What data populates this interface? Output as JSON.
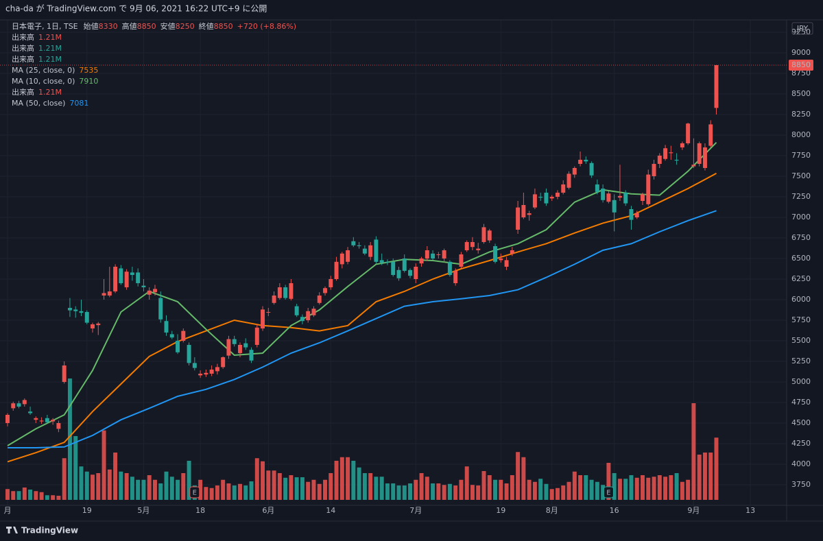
{
  "chart_data": {
    "type": "candlestick",
    "header": "cha-da が TradingView.com で 9月 06, 2021 16:22 UTC+9 に公開",
    "symbol": "日本電子, 1日, TSE",
    "ohlc_labels": [
      "始値",
      "高値",
      "安値",
      "終値"
    ],
    "change": "+720 (+8.86%)",
    "currency": "JPY",
    "earnings_marker": "E",
    "footer": "TradingView",
    "up_color": "#ef5350",
    "down_color": "#26a69a",
    "ylim": [
      3500,
      9400
    ],
    "yticks": [
      3750,
      4000,
      4250,
      4500,
      4750,
      5000,
      5250,
      5500,
      5750,
      6000,
      6250,
      6500,
      6750,
      7000,
      7250,
      7500,
      7750,
      8000,
      8250,
      8500,
      8750,
      9000,
      9250
    ],
    "xlim": [
      -1.33,
      137.4
    ],
    "xticks": [
      {
        "value": 0,
        "label": "月"
      },
      {
        "value": 14,
        "label": "19"
      },
      {
        "value": 24,
        "label": "5月"
      },
      {
        "value": 34,
        "label": "18"
      },
      {
        "value": 46,
        "label": "6月"
      },
      {
        "value": 57,
        "label": "14"
      },
      {
        "value": 72,
        "label": "7月"
      },
      {
        "value": 87,
        "label": "19"
      },
      {
        "value": 96,
        "label": "8月"
      },
      {
        "value": 107,
        "label": "16"
      },
      {
        "value": 121,
        "label": "9月"
      },
      {
        "value": 131,
        "label": "13"
      }
    ],
    "grid": true,
    "candles": [
      [
        4500,
        4620,
        4460,
        4600
      ],
      [
        4680,
        4760,
        4650,
        4740
      ],
      [
        4740,
        4770,
        4680,
        4700
      ],
      [
        4730,
        4800,
        4700,
        4780
      ],
      [
        4640,
        4700,
        4600,
        4620
      ],
      [
        4540,
        4580,
        4500,
        4560
      ],
      [
        4520,
        4570,
        4490,
        4530
      ],
      [
        4560,
        4600,
        4500,
        4510
      ],
      [
        4520,
        4560,
        4480,
        4540
      ],
      [
        4430,
        4530,
        4390,
        4500
      ],
      [
        5000,
        5250,
        4980,
        5200
      ],
      [
        5900,
        6020,
        5790,
        5870
      ],
      [
        5880,
        5920,
        5780,
        5860
      ],
      [
        5860,
        6000,
        5800,
        5840
      ],
      [
        5850,
        5870,
        5700,
        5720
      ],
      [
        5650,
        5720,
        5600,
        5700
      ],
      [
        5690,
        5730,
        5570,
        5710
      ],
      [
        6050,
        6250,
        6000,
        6080
      ],
      [
        6050,
        6400,
        6030,
        6100
      ],
      [
        6100,
        6430,
        6080,
        6400
      ],
      [
        6380,
        6420,
        6180,
        6200
      ],
      [
        6150,
        6370,
        6120,
        6340
      ],
      [
        6330,
        6400,
        6230,
        6300
      ],
      [
        6330,
        6380,
        6160,
        6200
      ],
      [
        6170,
        6250,
        6100,
        6150
      ],
      [
        6060,
        6150,
        6000,
        6110
      ],
      [
        6090,
        6180,
        6050,
        6130
      ],
      [
        6020,
        6100,
        5720,
        5760
      ],
      [
        5740,
        5810,
        5560,
        5600
      ],
      [
        5580,
        5620,
        5520,
        5540
      ],
      [
        5500,
        5580,
        5340,
        5360
      ],
      [
        5500,
        5650,
        5480,
        5620
      ],
      [
        5450,
        5480,
        5200,
        5230
      ],
      [
        5230,
        5300,
        5140,
        5170
      ],
      [
        5080,
        5140,
        5050,
        5100
      ],
      [
        5090,
        5150,
        5060,
        5110
      ],
      [
        5100,
        5200,
        5070,
        5150
      ],
      [
        5130,
        5220,
        5090,
        5180
      ],
      [
        5180,
        5310,
        5160,
        5300
      ],
      [
        5320,
        5560,
        5280,
        5520
      ],
      [
        5520,
        5560,
        5430,
        5460
      ],
      [
        5350,
        5480,
        5300,
        5450
      ],
      [
        5470,
        5530,
        5390,
        5420
      ],
      [
        5390,
        5420,
        5230,
        5260
      ],
      [
        5450,
        5700,
        5420,
        5660
      ],
      [
        5650,
        5920,
        5620,
        5880
      ],
      [
        5850,
        5900,
        5800,
        5850
      ],
      [
        5960,
        6100,
        5940,
        6050
      ],
      [
        6020,
        6200,
        6000,
        6150
      ],
      [
        6150,
        6180,
        6000,
        6020
      ],
      [
        6010,
        6250,
        5990,
        6200
      ],
      [
        5920,
        5950,
        5790,
        5810
      ],
      [
        5790,
        5820,
        5700,
        5740
      ],
      [
        5750,
        5900,
        5720,
        5860
      ],
      [
        5810,
        5920,
        5790,
        5890
      ],
      [
        5960,
        6090,
        5940,
        6050
      ],
      [
        6080,
        6160,
        6050,
        6140
      ],
      [
        6150,
        6290,
        6120,
        6250
      ],
      [
        6250,
        6520,
        6230,
        6460
      ],
      [
        6430,
        6580,
        6380,
        6560
      ],
      [
        6460,
        6640,
        6430,
        6600
      ],
      [
        6710,
        6760,
        6640,
        6660
      ],
      [
        6660,
        6700,
        6620,
        6650
      ],
      [
        6620,
        6660,
        6540,
        6560
      ],
      [
        6520,
        6700,
        6480,
        6660
      ],
      [
        6730,
        6770,
        6440,
        6460
      ],
      [
        6480,
        6560,
        6420,
        6450
      ],
      [
        6460,
        6490,
        6420,
        6450
      ],
      [
        6460,
        6500,
        6280,
        6300
      ],
      [
        6360,
        6400,
        6230,
        6260
      ],
      [
        6500,
        6550,
        6330,
        6350
      ],
      [
        6360,
        6380,
        6260,
        6290
      ],
      [
        6250,
        6440,
        6200,
        6400
      ],
      [
        6440,
        6520,
        6400,
        6500
      ],
      [
        6500,
        6650,
        6470,
        6600
      ],
      [
        6560,
        6600,
        6480,
        6500
      ],
      [
        6550,
        6580,
        6500,
        6550
      ],
      [
        6500,
        6620,
        6450,
        6600
      ],
      [
        6460,
        6480,
        6280,
        6300
      ],
      [
        6200,
        6380,
        6170,
        6350
      ],
      [
        6400,
        6580,
        6380,
        6550
      ],
      [
        6600,
        6720,
        6580,
        6700
      ],
      [
        6640,
        6760,
        6600,
        6700
      ],
      [
        6600,
        6690,
        6560,
        6620
      ],
      [
        6700,
        6920,
        6680,
        6880
      ],
      [
        6720,
        6860,
        6690,
        6840
      ],
      [
        6650,
        6680,
        6440,
        6460
      ],
      [
        6480,
        6560,
        6450,
        6500
      ],
      [
        6400,
        6520,
        6360,
        6480
      ],
      [
        6560,
        6640,
        6530,
        6600
      ],
      [
        6850,
        7200,
        6800,
        7120
      ],
      [
        7000,
        7300,
        6980,
        7150
      ],
      [
        7030,
        7080,
        6960,
        7050
      ],
      [
        7120,
        7350,
        7100,
        7280
      ],
      [
        7250,
        7300,
        7200,
        7240
      ],
      [
        7300,
        7350,
        7140,
        7170
      ],
      [
        7230,
        7270,
        7200,
        7250
      ],
      [
        7250,
        7330,
        7220,
        7300
      ],
      [
        7300,
        7450,
        7280,
        7400
      ],
      [
        7360,
        7560,
        7340,
        7530
      ],
      [
        7520,
        7620,
        7480,
        7600
      ],
      [
        7650,
        7800,
        7620,
        7700
      ],
      [
        7700,
        7740,
        7650,
        7680
      ],
      [
        7660,
        7680,
        7480,
        7510
      ],
      [
        7400,
        7460,
        7280,
        7310
      ],
      [
        7350,
        7400,
        7180,
        7210
      ],
      [
        7190,
        7320,
        7170,
        7290
      ],
      [
        7210,
        7280,
        6830,
        7060
      ],
      [
        7240,
        7640,
        7200,
        7260
      ],
      [
        7300,
        7330,
        7140,
        7170
      ],
      [
        7100,
        7140,
        6850,
        6970
      ],
      [
        7000,
        7080,
        6980,
        7050
      ],
      [
        7200,
        7300,
        7150,
        7280
      ],
      [
        7160,
        7580,
        7140,
        7520
      ],
      [
        7500,
        7700,
        7460,
        7650
      ],
      [
        7650,
        7780,
        7600,
        7750
      ],
      [
        7710,
        7880,
        7690,
        7840
      ],
      [
        7780,
        7870,
        7700,
        7790
      ],
      [
        7700,
        7780,
        7640,
        7690
      ],
      [
        7850,
        7920,
        7820,
        7900
      ],
      [
        7900,
        8150,
        7880,
        8140
      ],
      [
        7620,
        7960,
        7600,
        7640
      ],
      [
        7650,
        7920,
        7620,
        7900
      ],
      [
        7600,
        7900,
        7570,
        7850
      ],
      [
        7870,
        8180,
        7850,
        8130
      ],
      [
        8330,
        8850,
        8250,
        8850
      ]
    ],
    "volume": {
      "name": "出来高",
      "label": "1.21M",
      "values": [
        0.21,
        0.17,
        0.17,
        0.24,
        0.2,
        0.17,
        0.15,
        0.09,
        0.09,
        0.08,
        0.81,
        2.36,
        1.24,
        0.65,
        0.55,
        0.49,
        0.52,
        1.35,
        0.59,
        0.92,
        0.55,
        0.52,
        0.45,
        0.39,
        0.39,
        0.48,
        0.39,
        0.32,
        0.55,
        0.45,
        0.39,
        0.52,
        0.76,
        0.28,
        0.39,
        0.25,
        0.23,
        0.28,
        0.39,
        0.32,
        0.28,
        0.31,
        0.28,
        0.36,
        0.81,
        0.75,
        0.57,
        0.57,
        0.52,
        0.43,
        0.48,
        0.44,
        0.44,
        0.35,
        0.39,
        0.31,
        0.39,
        0.52,
        0.76,
        0.83,
        0.83,
        0.76,
        0.63,
        0.52,
        0.52,
        0.45,
        0.45,
        0.32,
        0.32,
        0.28,
        0.28,
        0.32,
        0.39,
        0.52,
        0.45,
        0.32,
        0.32,
        0.29,
        0.31,
        0.28,
        0.39,
        0.65,
        0.29,
        0.28,
        0.56,
        0.48,
        0.39,
        0.39,
        0.32,
        0.48,
        0.93,
        0.83,
        0.39,
        0.35,
        0.41,
        0.31,
        0.21,
        0.23,
        0.28,
        0.35,
        0.55,
        0.48,
        0.48,
        0.39,
        0.35,
        0.29,
        0.72,
        0.52,
        0.41,
        0.41,
        0.48,
        0.43,
        0.48,
        0.43,
        0.45,
        0.48,
        0.45,
        0.48,
        0.52,
        0.35,
        0.39,
        1.88,
        0.88,
        0.92,
        0.92,
        1.21
      ]
    },
    "series": [
      {
        "name": "MA (25, close, 0)",
        "color": "#f57c00",
        "x": [
          0,
          5,
          10,
          15,
          20,
          25,
          30,
          35,
          40,
          45,
          50,
          55,
          60,
          65,
          70,
          75,
          80,
          85,
          90,
          95,
          100,
          105,
          110,
          115,
          120,
          125
        ],
        "values": [
          4030,
          4140,
          4265,
          4640,
          4975,
          5310,
          5490,
          5620,
          5750,
          5685,
          5660,
          5620,
          5685,
          5975,
          6100,
          6250,
          6375,
          6475,
          6580,
          6680,
          6810,
          6930,
          7020,
          7185,
          7350,
          7535
        ]
      },
      {
        "name": "MA (10, close, 0)",
        "color": "#66bb6a",
        "x": [
          0,
          5,
          10,
          15,
          20,
          25,
          30,
          35,
          40,
          45,
          50,
          55,
          60,
          65,
          70,
          75,
          80,
          85,
          90,
          95,
          100,
          105,
          110,
          115,
          120,
          125
        ],
        "values": [
          4225,
          4430,
          4600,
          5140,
          5850,
          6100,
          5975,
          5640,
          5325,
          5350,
          5685,
          5875,
          6160,
          6430,
          6490,
          6475,
          6430,
          6580,
          6680,
          6850,
          7185,
          7335,
          7285,
          7270,
          7560,
          7910
        ]
      },
      {
        "name": "MA (50, close)",
        "color": "#2196f3",
        "x": [
          0,
          5,
          10,
          15,
          20,
          25,
          30,
          35,
          40,
          45,
          50,
          55,
          60,
          65,
          70,
          75,
          80,
          85,
          90,
          95,
          100,
          105,
          110,
          115,
          120,
          125
        ],
        "values": [
          4200,
          4200,
          4210,
          4350,
          4540,
          4680,
          4825,
          4910,
          5030,
          5180,
          5350,
          5475,
          5620,
          5770,
          5920,
          5975,
          6010,
          6050,
          6120,
          6270,
          6430,
          6600,
          6680,
          6825,
          6960,
          7081
        ]
      }
    ]
  }
}
